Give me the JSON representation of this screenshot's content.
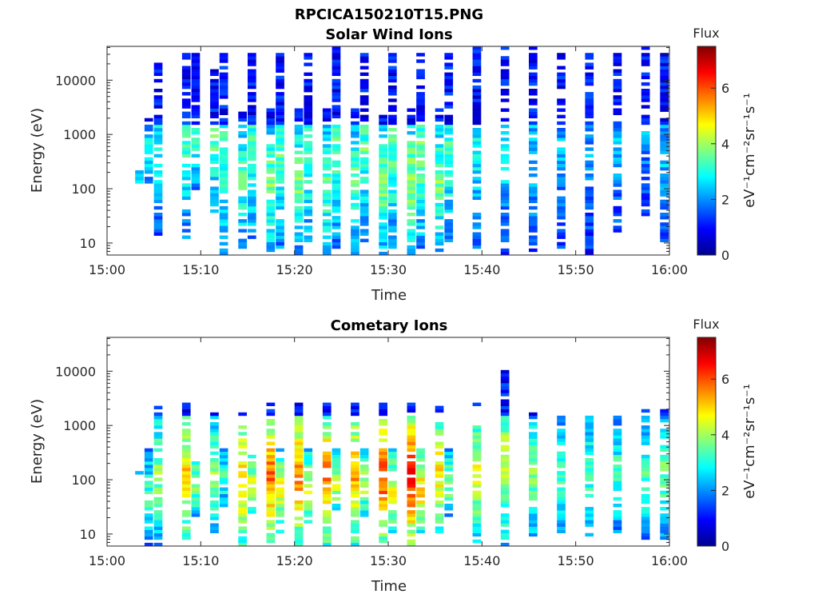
{
  "figure": {
    "title": "RPCICA150210T15.PNG",
    "colormap": [
      "#00008f",
      "#0000ff",
      "#0080ff",
      "#00ffff",
      "#80ff80",
      "#ffff00",
      "#ff8000",
      "#ff0000",
      "#800000"
    ]
  },
  "chart_data": [
    {
      "type": "heatmap",
      "title": "Solar Wind Ions",
      "xlabel": "Time",
      "ylabel": "Energy (eV)",
      "x_ticks": [
        "15:00",
        "15:10",
        "15:20",
        "15:30",
        "15:40",
        "15:50",
        "16:00"
      ],
      "xlim": [
        "15:00",
        "16:00"
      ],
      "y_scale": "log",
      "y_ticks": [
        "10",
        "100",
        "1000",
        "10000"
      ],
      "ylim": [
        6,
        42000
      ],
      "colorbar": {
        "label": "Flux",
        "unit": "eV⁻¹cm⁻²sr⁻¹s⁻¹",
        "ticks": [
          "0",
          "2",
          "4",
          "6"
        ],
        "range": [
          0,
          7.5
        ]
      },
      "scans": [
        {
          "t": "15:03",
          "lo": 120,
          "hi": 250,
          "flux": 2.5
        },
        {
          "t": "15:04",
          "lo": 120,
          "hi": 2000,
          "flux": 2.8
        },
        {
          "t": "15:05",
          "lo": 14,
          "hi": 20000,
          "flux": 2.6
        },
        {
          "t": "15:08",
          "lo": 10,
          "hi": 30000,
          "flux": 2.8
        },
        {
          "t": "15:09",
          "lo": 80,
          "hi": 30000,
          "flux": 2.9
        },
        {
          "t": "15:11",
          "lo": 30,
          "hi": 20000,
          "flux": 3.0
        },
        {
          "t": "15:12",
          "lo": 6,
          "hi": 30000,
          "flux": 3.0
        },
        {
          "t": "15:14",
          "lo": 8,
          "hi": 3000,
          "flux": 3.1
        },
        {
          "t": "15:15",
          "lo": 10,
          "hi": 30000,
          "flux": 3.0
        },
        {
          "t": "15:17",
          "lo": 6,
          "hi": 3000,
          "flux": 3.3
        },
        {
          "t": "15:18",
          "lo": 8,
          "hi": 30000,
          "flux": 3.1
        },
        {
          "t": "15:20",
          "lo": 6,
          "hi": 3000,
          "flux": 3.3
        },
        {
          "t": "15:21",
          "lo": 8,
          "hi": 30000,
          "flux": 3.0
        },
        {
          "t": "15:23",
          "lo": 6,
          "hi": 3000,
          "flux": 3.2
        },
        {
          "t": "15:24",
          "lo": 8,
          "hi": 40000,
          "flux": 3.0
        },
        {
          "t": "15:26",
          "lo": 6,
          "hi": 3000,
          "flux": 3.2
        },
        {
          "t": "15:27",
          "lo": 10,
          "hi": 30000,
          "flux": 3.0
        },
        {
          "t": "15:29",
          "lo": 6,
          "hi": 3000,
          "flux": 3.4
        },
        {
          "t": "15:30",
          "lo": 8,
          "hi": 30000,
          "flux": 3.0
        },
        {
          "t": "15:32",
          "lo": 6,
          "hi": 3000,
          "flux": 3.6
        },
        {
          "t": "15:33",
          "lo": 8,
          "hi": 30000,
          "flux": 3.2
        },
        {
          "t": "15:35",
          "lo": 6,
          "hi": 3000,
          "flux": 3.3
        },
        {
          "t": "15:36",
          "lo": 10,
          "hi": 30000,
          "flux": 3.0
        },
        {
          "t": "15:39",
          "lo": 8,
          "hi": 40000,
          "flux": 2.6
        },
        {
          "t": "15:42",
          "lo": 6,
          "hi": 40000,
          "flux": 2.3
        },
        {
          "t": "15:45",
          "lo": 6,
          "hi": 40000,
          "flux": 2.2
        },
        {
          "t": "15:48",
          "lo": 8,
          "hi": 30000,
          "flux": 2.0
        },
        {
          "t": "15:51",
          "lo": 6,
          "hi": 30000,
          "flux": 1.9
        },
        {
          "t": "15:54",
          "lo": 15,
          "hi": 30000,
          "flux": 2.0
        },
        {
          "t": "15:57",
          "lo": 30,
          "hi": 40000,
          "flux": 1.9
        },
        {
          "t": "15:59",
          "lo": 10,
          "hi": 30000,
          "flux": 2.1
        }
      ]
    },
    {
      "type": "heatmap",
      "title": "Cometary Ions",
      "xlabel": "Time",
      "ylabel": "Energy (eV)",
      "x_ticks": [
        "15:00",
        "15:10",
        "15:20",
        "15:30",
        "15:40",
        "15:50",
        "16:00"
      ],
      "xlim": [
        "15:00",
        "16:00"
      ],
      "y_scale": "log",
      "y_ticks": [
        "10",
        "100",
        "1000",
        "10000"
      ],
      "ylim": [
        6,
        42000
      ],
      "colorbar": {
        "label": "Flux",
        "unit": "eV⁻¹cm⁻²sr⁻¹s⁻¹",
        "ticks": [
          "0",
          "2",
          "4",
          "6"
        ],
        "range": [
          0,
          7.5
        ]
      },
      "scans": [
        {
          "t": "15:03",
          "lo": 120,
          "hi": 150,
          "flux": 1.5
        },
        {
          "t": "15:04",
          "lo": 6,
          "hi": 400,
          "flux": 3.0
        },
        {
          "t": "15:05",
          "lo": 6,
          "hi": 2500,
          "flux": 3.5
        },
        {
          "t": "15:08",
          "lo": 6,
          "hi": 2500,
          "flux": 4.5
        },
        {
          "t": "15:09",
          "lo": 20,
          "hi": 400,
          "flux": 3.5
        },
        {
          "t": "15:11",
          "lo": 10,
          "hi": 2000,
          "flux": 3.5
        },
        {
          "t": "15:12",
          "lo": 30,
          "hi": 400,
          "flux": 3.0
        },
        {
          "t": "15:14",
          "lo": 6,
          "hi": 2000,
          "flux": 4.8
        },
        {
          "t": "15:15",
          "lo": 20,
          "hi": 400,
          "flux": 3.8
        },
        {
          "t": "15:17",
          "lo": 6,
          "hi": 2500,
          "flux": 5.2
        },
        {
          "t": "15:18",
          "lo": 10,
          "hi": 400,
          "flux": 4.2
        },
        {
          "t": "15:20",
          "lo": 6,
          "hi": 2500,
          "flux": 5.0
        },
        {
          "t": "15:21",
          "lo": 15,
          "hi": 400,
          "flux": 4.0
        },
        {
          "t": "15:23",
          "lo": 6,
          "hi": 2500,
          "flux": 5.0
        },
        {
          "t": "15:24",
          "lo": 20,
          "hi": 400,
          "flux": 3.8
        },
        {
          "t": "15:26",
          "lo": 6,
          "hi": 2500,
          "flux": 4.8
        },
        {
          "t": "15:27",
          "lo": 20,
          "hi": 400,
          "flux": 3.8
        },
        {
          "t": "15:29",
          "lo": 6,
          "hi": 2500,
          "flux": 5.5
        },
        {
          "t": "15:30",
          "lo": 10,
          "hi": 400,
          "flux": 4.2
        },
        {
          "t": "15:32",
          "lo": 6,
          "hi": 2500,
          "flux": 5.8
        },
        {
          "t": "15:33",
          "lo": 10,
          "hi": 400,
          "flux": 4.5
        },
        {
          "t": "15:35",
          "lo": 10,
          "hi": 2500,
          "flux": 4.5
        },
        {
          "t": "15:36",
          "lo": 20,
          "hi": 400,
          "flux": 3.5
        },
        {
          "t": "15:39",
          "lo": 6,
          "hi": 2500,
          "flux": 4.0
        },
        {
          "t": "15:42",
          "lo": 6,
          "hi": 10000,
          "flux": 3.8
        },
        {
          "t": "15:45",
          "lo": 8,
          "hi": 2000,
          "flux": 3.4
        },
        {
          "t": "15:48",
          "lo": 10,
          "hi": 1500,
          "flux": 3.0
        },
        {
          "t": "15:51",
          "lo": 8,
          "hi": 2000,
          "flux": 3.0
        },
        {
          "t": "15:54",
          "lo": 10,
          "hi": 1500,
          "flux": 3.0
        },
        {
          "t": "15:57",
          "lo": 8,
          "hi": 2000,
          "flux": 3.0
        },
        {
          "t": "15:59",
          "lo": 8,
          "hi": 2000,
          "flux": 3.2
        }
      ]
    }
  ]
}
